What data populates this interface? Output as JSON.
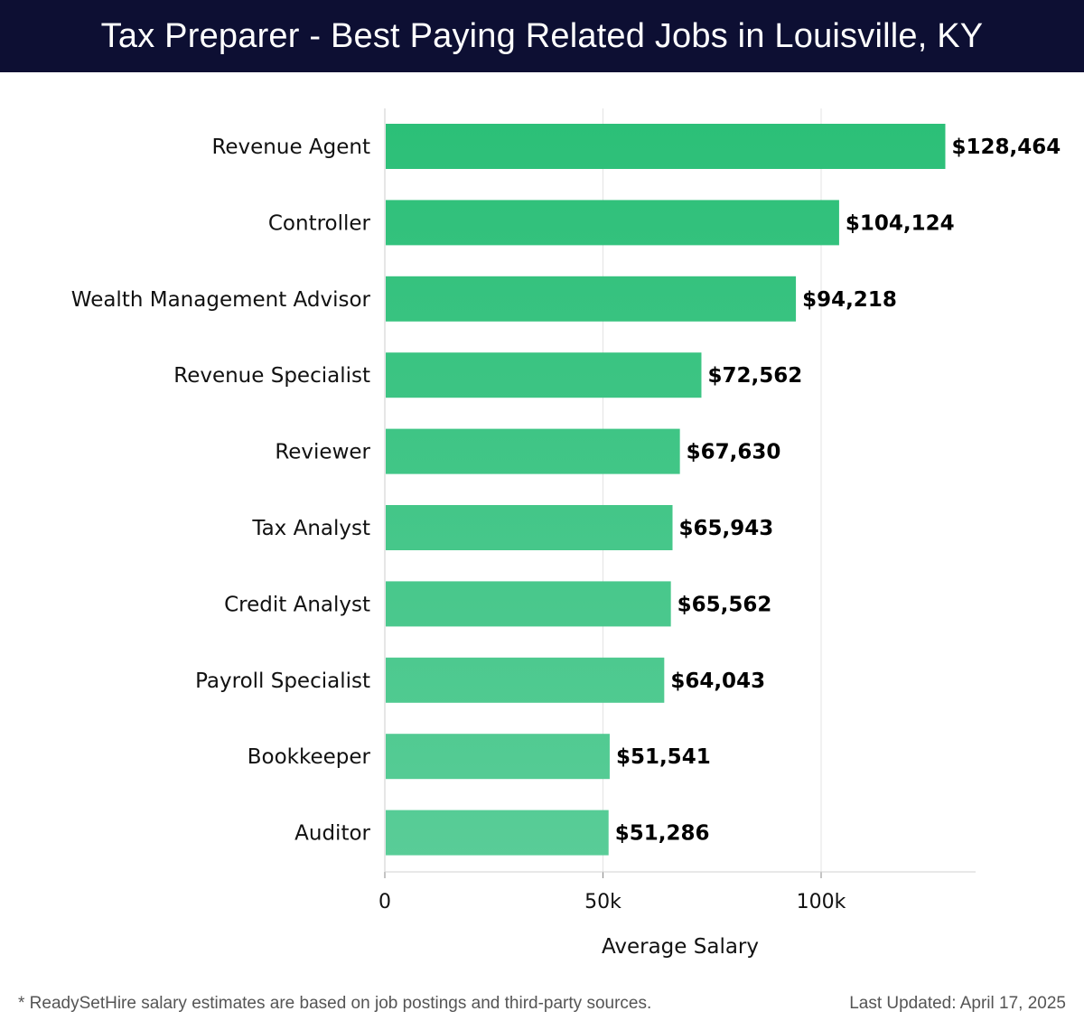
{
  "header": {
    "title": "Tax Preparer - Best Paying Related Jobs in Louisville, KY"
  },
  "footer": {
    "note": "* ReadySetHire salary estimates are based on job postings and third-party sources.",
    "updated": "Last Updated: April 17, 2025"
  },
  "colors": {
    "header_bg": "#0d0f33",
    "bar_top": "#2bbf77",
    "bar_bottom": "#5acd98"
  },
  "chart_data": {
    "type": "bar",
    "orientation": "horizontal",
    "title": "Tax Preparer - Best Paying Related Jobs in Louisville, KY",
    "xlabel": "Average Salary",
    "ylabel": "",
    "xlim": [
      0,
      135000
    ],
    "xticks": [
      0,
      50000,
      100000
    ],
    "xtick_labels": [
      "0",
      "50k",
      "100k"
    ],
    "grid": "vertical",
    "categories": [
      "Revenue Agent",
      "Controller",
      "Wealth Management Advisor",
      "Revenue Specialist",
      "Reviewer",
      "Tax Analyst",
      "Credit Analyst",
      "Payroll Specialist",
      "Bookkeeper",
      "Auditor"
    ],
    "values": [
      128464,
      104124,
      94218,
      72562,
      67630,
      65943,
      65562,
      64043,
      51541,
      51286
    ],
    "value_labels": [
      "$128,464",
      "$104,124",
      "$94,218",
      "$72,562",
      "$67,630",
      "$65,943",
      "$65,562",
      "$64,043",
      "$51,541",
      "$51,286"
    ]
  }
}
